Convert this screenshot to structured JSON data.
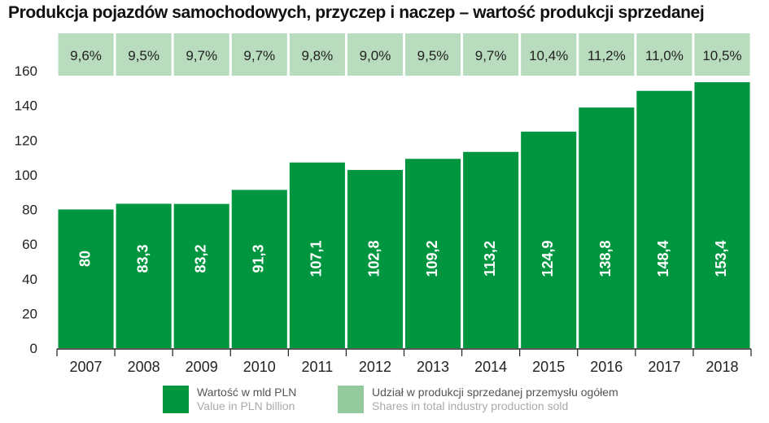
{
  "title": "Produkcja pojazdów samochodowych, przyczep i naczep – wartość produkcji sprzedanej",
  "colors": {
    "bar": "#009640",
    "share_box": "#b8dcbd",
    "legend_share": "#93c99c",
    "axis": "#222222"
  },
  "chart_data": {
    "type": "bar",
    "categories": [
      "2007",
      "2008",
      "2009",
      "2010",
      "2011",
      "2012",
      "2013",
      "2014",
      "2015",
      "2016",
      "2017",
      "2018"
    ],
    "values": [
      80,
      83.3,
      83.2,
      91.3,
      107.1,
      102.8,
      109.2,
      113.2,
      124.9,
      138.8,
      148.4,
      153.4
    ],
    "value_labels": [
      "80",
      "83,3",
      "83,2",
      "91,3",
      "107,1",
      "102,8",
      "109,2",
      "113,2",
      "124,9",
      "138,8",
      "148,4",
      "153,4"
    ],
    "shares": [
      "9,6%",
      "9,5%",
      "9,7%",
      "9,7%",
      "9,8%",
      "9,0%",
      "9,5%",
      "9,7%",
      "10,4%",
      "11,2%",
      "11,0%",
      "10,5%"
    ],
    "yticks": [
      0,
      20,
      40,
      60,
      80,
      100,
      120,
      140,
      160
    ],
    "ylim": [
      0,
      160
    ],
    "grid": false
  },
  "legend": {
    "value": {
      "pl": "Wartość w mld PLN",
      "en": "Value in PLN billion"
    },
    "share": {
      "pl": "Udział w produkcji sprzedanej przemysłu ogółem",
      "en": "Shares in total industry production sold"
    }
  }
}
